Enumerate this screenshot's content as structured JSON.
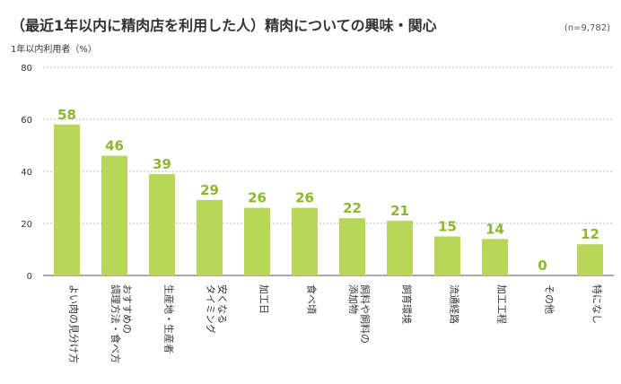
{
  "chart_data": {
    "type": "bar",
    "title": "（最近1年以内に精肉店を利用した人）精肉についての興味・関心",
    "sample_size": "(n=9,782)",
    "ylabel": "1年以内利用者（%）",
    "xlabel": "",
    "ylim": [
      0,
      80
    ],
    "yticks": [
      0,
      20,
      40,
      60,
      80
    ],
    "grid": true,
    "bar_color": "#b8d65a",
    "label_color": "#8cb82e",
    "categories": [
      [
        "よい肉の見分け方"
      ],
      [
        "おすすめの",
        "調理方法・食べ方"
      ],
      [
        "生産地・生産者"
      ],
      [
        "安くなる",
        "タイミング"
      ],
      [
        "加工日"
      ],
      [
        "食べ頃"
      ],
      [
        "飼料や飼料の",
        "添加物"
      ],
      [
        "飼育環境"
      ],
      [
        "流通経路"
      ],
      [
        "加工工程"
      ],
      [
        "その他"
      ],
      [
        "特になし"
      ]
    ],
    "values": [
      58,
      46,
      39,
      29,
      26,
      26,
      22,
      21,
      15,
      14,
      0,
      12
    ]
  }
}
